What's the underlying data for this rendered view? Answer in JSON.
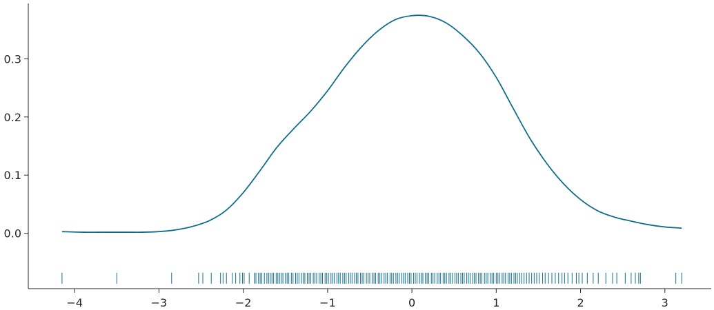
{
  "chart_data": {
    "type": "line",
    "title": "",
    "xlabel": "",
    "ylabel": "",
    "xlim": [
      -4.55,
      3.55
    ],
    "ylim": [
      -0.095,
      0.395
    ],
    "grid": false,
    "legend": "none",
    "line_color": "#106e8c",
    "x_ticks": [
      -4,
      -3,
      -2,
      -1,
      0,
      1,
      2,
      3
    ],
    "x_tick_labels": [
      "−4",
      "−3",
      "−2",
      "−1",
      "0",
      "1",
      "2",
      "3"
    ],
    "y_ticks": [
      0.0,
      0.1,
      0.2,
      0.3
    ],
    "y_tick_labels": [
      "0.0",
      "0.1",
      "0.2",
      "0.3"
    ],
    "density_curve": {
      "x": [
        -4.15,
        -3.9,
        -3.6,
        -3.4,
        -3.2,
        -3.0,
        -2.8,
        -2.6,
        -2.4,
        -2.2,
        -2.0,
        -1.8,
        -1.6,
        -1.4,
        -1.2,
        -1.0,
        -0.8,
        -0.6,
        -0.4,
        -0.2,
        0.0,
        0.2,
        0.4,
        0.6,
        0.8,
        1.0,
        1.2,
        1.4,
        1.6,
        1.8,
        2.0,
        2.2,
        2.4,
        2.6,
        2.8,
        3.0,
        3.2
      ],
      "y": [
        0.003,
        0.002,
        0.002,
        0.002,
        0.002,
        0.003,
        0.006,
        0.012,
        0.022,
        0.04,
        0.07,
        0.108,
        0.148,
        0.18,
        0.21,
        0.245,
        0.285,
        0.32,
        0.348,
        0.367,
        0.374,
        0.373,
        0.362,
        0.34,
        0.31,
        0.268,
        0.215,
        0.163,
        0.12,
        0.085,
        0.058,
        0.039,
        0.028,
        0.021,
        0.015,
        0.011,
        0.009
      ]
    },
    "rug": {
      "y": -0.077,
      "values": [
        -4.15,
        -3.5,
        -2.85,
        -2.53,
        -2.48,
        -2.38,
        -2.27,
        -2.24,
        -2.2,
        -2.13,
        -2.09,
        -2.04,
        -2.01,
        -1.99,
        -1.93,
        -1.87,
        -1.85,
        -1.82,
        -1.8,
        -1.78,
        -1.75,
        -1.72,
        -1.7,
        -1.68,
        -1.66,
        -1.64,
        -1.61,
        -1.59,
        -1.57,
        -1.55,
        -1.53,
        -1.5,
        -1.48,
        -1.46,
        -1.43,
        -1.41,
        -1.38,
        -1.36,
        -1.34,
        -1.31,
        -1.29,
        -1.27,
        -1.24,
        -1.22,
        -1.2,
        -1.17,
        -1.15,
        -1.13,
        -1.1,
        -1.08,
        -1.06,
        -1.03,
        -1.01,
        -0.99,
        -0.96,
        -0.94,
        -0.92,
        -0.89,
        -0.87,
        -0.85,
        -0.82,
        -0.8,
        -0.78,
        -0.75,
        -0.73,
        -0.71,
        -0.68,
        -0.66,
        -0.64,
        -0.61,
        -0.59,
        -0.57,
        -0.54,
        -0.52,
        -0.5,
        -0.47,
        -0.45,
        -0.43,
        -0.4,
        -0.38,
        -0.36,
        -0.33,
        -0.31,
        -0.29,
        -0.26,
        -0.24,
        -0.22,
        -0.19,
        -0.17,
        -0.15,
        -0.12,
        -0.1,
        -0.08,
        -0.05,
        -0.03,
        -0.01,
        0.02,
        0.04,
        0.06,
        0.09,
        0.11,
        0.13,
        0.16,
        0.18,
        0.2,
        0.23,
        0.25,
        0.27,
        0.3,
        0.32,
        0.34,
        0.37,
        0.39,
        0.41,
        0.44,
        0.46,
        0.48,
        0.51,
        0.53,
        0.55,
        0.58,
        0.6,
        0.62,
        0.65,
        0.67,
        0.69,
        0.72,
        0.74,
        0.76,
        0.79,
        0.81,
        0.83,
        0.86,
        0.88,
        0.9,
        0.93,
        0.95,
        0.97,
        1.0,
        1.02,
        1.04,
        1.07,
        1.09,
        1.11,
        1.14,
        1.16,
        1.18,
        1.21,
        1.23,
        1.25,
        1.28,
        1.3,
        1.33,
        1.36,
        1.39,
        1.42,
        1.45,
        1.48,
        1.51,
        1.55,
        1.58,
        1.62,
        1.66,
        1.7,
        1.74,
        1.78,
        1.81,
        1.85,
        1.9,
        1.95,
        1.98,
        2.02,
        2.08,
        2.15,
        2.21,
        2.3,
        2.38,
        2.43,
        2.53,
        2.6,
        2.65,
        2.69,
        2.71,
        3.13,
        3.2
      ]
    }
  }
}
